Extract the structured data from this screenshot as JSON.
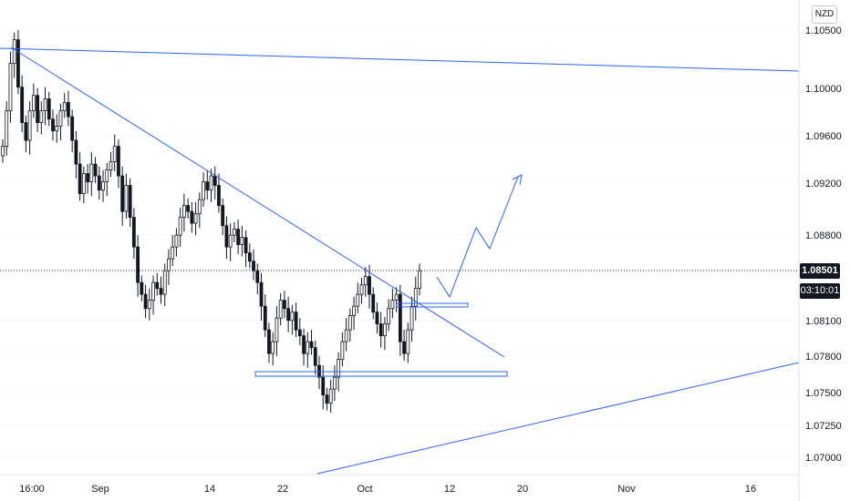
{
  "chart_data": {
    "type": "candlestick",
    "currency": "NZD",
    "current_price": "1.08501",
    "countdown": "03:10:01",
    "y_ticks": [
      "1.10500",
      "1.10000",
      "1.09600",
      "1.09200",
      "1.08800",
      "1.08100",
      "1.07800",
      "1.07500",
      "1.07250",
      "1.07000"
    ],
    "x_ticks": [
      "16:00",
      "Sep",
      "14",
      "22",
      "Oct",
      "12",
      "20",
      "Nov",
      "16"
    ],
    "ylim": [
      1.069,
      1.1065
    ],
    "price_series_close": [
      1.0955,
      1.0985,
      1.1025,
      1.1045,
      1.1005,
      1.0975,
      1.096,
      1.0985,
      1.0998,
      1.0975,
      1.0985,
      1.0995,
      1.0978,
      1.0968,
      1.0972,
      1.0985,
      1.0992,
      1.098,
      1.096,
      1.094,
      1.0915,
      1.0932,
      1.0925,
      1.094,
      1.093,
      1.0918,
      1.0925,
      1.0935,
      1.0942,
      1.0955,
      1.093,
      1.09,
      1.0922,
      1.0895,
      1.087,
      1.084,
      1.083,
      1.0818,
      1.0825,
      1.084,
      1.0835,
      1.083,
      1.085,
      1.086,
      1.087,
      1.088,
      1.0895,
      1.0905,
      1.09,
      1.089,
      1.0898,
      1.091,
      1.0925,
      1.0918,
      1.093,
      1.0922,
      1.0905,
      1.0888,
      1.087,
      1.088,
      1.0885,
      1.0872,
      1.0878,
      1.0865,
      1.0858,
      1.085,
      1.084,
      1.082,
      1.08,
      1.078,
      1.079,
      1.081,
      1.0825,
      1.0818,
      1.0808,
      1.0815,
      1.08,
      1.0795,
      1.078,
      1.079,
      1.0785,
      1.077,
      1.076,
      1.0745,
      1.0738,
      1.075,
      1.076,
      1.0775,
      1.079,
      1.08,
      1.0812,
      1.082,
      1.083,
      1.0838,
      1.0845,
      1.083,
      1.0815,
      1.0805,
      1.0795,
      1.0805,
      1.0818,
      1.0825,
      1.083,
      1.079,
      1.078,
      1.08,
      1.082,
      1.0835,
      1.085
    ]
  }
}
